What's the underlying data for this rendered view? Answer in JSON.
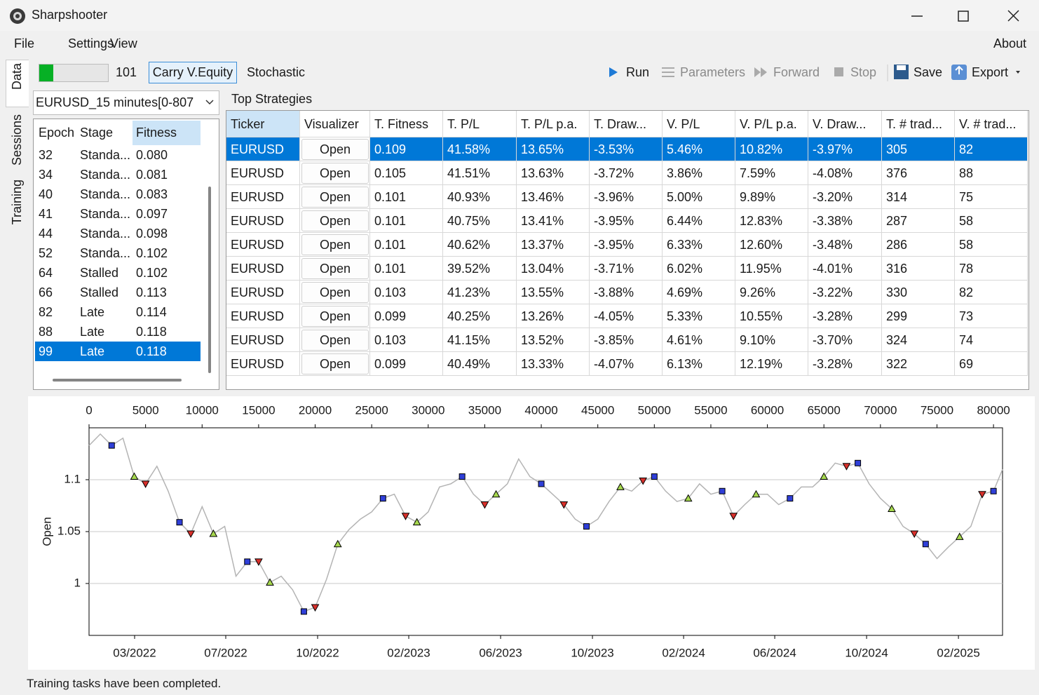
{
  "window": {
    "title": "Sharpshooter"
  },
  "menu": {
    "items": [
      "File",
      "Settings",
      "View"
    ],
    "about": "About"
  },
  "side_tabs": [
    "Data",
    "Sessions",
    "Training"
  ],
  "toolbar": {
    "progress_label": "101",
    "buttons": [
      "Carry V.Equity",
      "Stochastic"
    ],
    "actions": [
      "Run",
      "Parameters",
      "Forward",
      "Stop",
      "Save",
      "Export"
    ]
  },
  "dataset": "EURUSD_15 minutes[0-807",
  "epochs": {
    "columns": [
      "Epoch",
      "Stage",
      "Fitness"
    ],
    "rows": [
      [
        "32",
        "Standa...",
        "0.080"
      ],
      [
        "34",
        "Standa...",
        "0.081"
      ],
      [
        "40",
        "Standa...",
        "0.083"
      ],
      [
        "41",
        "Standa...",
        "0.097"
      ],
      [
        "44",
        "Standa...",
        "0.098"
      ],
      [
        "52",
        "Standa...",
        "0.102"
      ],
      [
        "64",
        "Stalled",
        "0.102"
      ],
      [
        "66",
        "Stalled",
        "0.113"
      ],
      [
        "82",
        "Late",
        "0.114"
      ],
      [
        "88",
        "Late",
        "0.118"
      ],
      [
        "99",
        "Late",
        "0.118"
      ]
    ],
    "selected_row": 10
  },
  "strategies": {
    "title": "Top Strategies",
    "columns": [
      "Ticker",
      "Visualizer",
      "T. Fitness",
      "T. P/L",
      "T. P/L p.a.",
      "T. Draw...",
      "V. P/L",
      "V. P/L p.a.",
      "V. Draw...",
      "T. # trad...",
      "V. # trad..."
    ],
    "rows": [
      [
        "EURUSD",
        "Open",
        "0.109",
        "41.58%",
        "13.65%",
        "-3.53%",
        "5.46%",
        "10.82%",
        "-3.97%",
        "305",
        "82"
      ],
      [
        "EURUSD",
        "Open",
        "0.105",
        "41.51%",
        "13.63%",
        "-3.72%",
        "3.86%",
        "7.59%",
        "-4.08%",
        "376",
        "88"
      ],
      [
        "EURUSD",
        "Open",
        "0.101",
        "40.93%",
        "13.46%",
        "-3.96%",
        "5.00%",
        "9.89%",
        "-3.20%",
        "314",
        "75"
      ],
      [
        "EURUSD",
        "Open",
        "0.101",
        "40.75%",
        "13.41%",
        "-3.95%",
        "6.44%",
        "12.83%",
        "-3.38%",
        "287",
        "58"
      ],
      [
        "EURUSD",
        "Open",
        "0.101",
        "40.62%",
        "13.37%",
        "-3.95%",
        "6.33%",
        "12.60%",
        "-3.48%",
        "286",
        "58"
      ],
      [
        "EURUSD",
        "Open",
        "0.101",
        "39.52%",
        "13.04%",
        "-3.71%",
        "6.02%",
        "11.95%",
        "-4.01%",
        "316",
        "78"
      ],
      [
        "EURUSD",
        "Open",
        "0.103",
        "41.23%",
        "13.55%",
        "-3.88%",
        "4.69%",
        "9.26%",
        "-3.22%",
        "330",
        "82"
      ],
      [
        "EURUSD",
        "Open",
        "0.099",
        "40.25%",
        "13.26%",
        "-4.05%",
        "5.33%",
        "10.55%",
        "-3.28%",
        "299",
        "73"
      ],
      [
        "EURUSD",
        "Open",
        "0.103",
        "41.15%",
        "13.52%",
        "-3.85%",
        "4.61%",
        "9.10%",
        "-3.70%",
        "324",
        "74"
      ],
      [
        "EURUSD",
        "Open",
        "0.099",
        "40.49%",
        "13.33%",
        "-4.07%",
        "6.13%",
        "12.19%",
        "-3.28%",
        "322",
        "69"
      ]
    ],
    "selected_row": 0
  },
  "chart_data": {
    "type": "line",
    "ylabel": "Open",
    "color": "#b4b4b4",
    "x": [
      0,
      1000,
      2000,
      3000,
      4000,
      5000,
      6000,
      7000,
      8000,
      9000,
      10000,
      11000,
      12000,
      13000,
      14000,
      15000,
      16000,
      17000,
      18000,
      19000,
      20000,
      21000,
      22000,
      23000,
      24000,
      25000,
      26000,
      27000,
      28000,
      29000,
      30000,
      31000,
      32000,
      33000,
      34000,
      35000,
      36000,
      37000,
      38000,
      39000,
      40000,
      41000,
      42000,
      43000,
      44000,
      45000,
      46000,
      47000,
      48000,
      49000,
      50000,
      51000,
      52000,
      53000,
      54000,
      55000,
      56000,
      57000,
      58000,
      59000,
      60000,
      61000,
      62000,
      63000,
      64000,
      65000,
      66000,
      67000,
      68000,
      69000,
      70000,
      71000,
      72000,
      73000,
      74000,
      75000,
      76000,
      77000,
      78000,
      79000,
      80000,
      80800
    ],
    "values": [
      1.133,
      1.144,
      1.133,
      1.14,
      1.103,
      1.096,
      1.113,
      1.089,
      1.059,
      1.048,
      1.074,
      1.048,
      1.055,
      1.007,
      1.021,
      1.021,
      1.001,
      1.007,
      0.994,
      0.973,
      0.977,
      1.004,
      1.038,
      1.052,
      1.062,
      1.069,
      1.082,
      1.086,
      1.065,
      1.059,
      1.069,
      1.093,
      1.096,
      1.103,
      1.086,
      1.076,
      1.086,
      1.096,
      1.12,
      1.103,
      1.096,
      1.086,
      1.076,
      1.062,
      1.055,
      1.062,
      1.079,
      1.093,
      1.089,
      1.099,
      1.103,
      1.089,
      1.079,
      1.082,
      1.096,
      1.086,
      1.089,
      1.065,
      1.076,
      1.086,
      1.086,
      1.076,
      1.082,
      1.093,
      1.093,
      1.103,
      1.116,
      1.113,
      1.116,
      1.096,
      1.082,
      1.072,
      1.055,
      1.048,
      1.038,
      1.024,
      1.035,
      1.045,
      1.055,
      1.086,
      1.089,
      1.11
    ],
    "markers": [
      {
        "shape": "square",
        "color": "#2f3fd8",
        "x": [
          2000,
          8000,
          14000,
          19000,
          26000,
          33000,
          40000,
          44000,
          50000,
          56000,
          62000,
          68000,
          74000,
          80000
        ],
        "values": [
          1.133,
          1.059,
          1.021,
          0.973,
          1.082,
          1.103,
          1.096,
          1.055,
          1.103,
          1.089,
          1.082,
          1.116,
          1.038,
          1.089
        ]
      },
      {
        "shape": "triangle-up",
        "color": "#a6d84e",
        "x": [
          4000,
          11000,
          16000,
          22000,
          29000,
          36000,
          47000,
          53000,
          59000,
          65000,
          71000,
          77000
        ],
        "values": [
          1.103,
          1.048,
          1.001,
          1.038,
          1.059,
          1.086,
          1.093,
          1.082,
          1.086,
          1.103,
          1.072,
          1.045
        ]
      },
      {
        "shape": "triangle-down",
        "color": "#d8302b",
        "x": [
          5000,
          9000,
          15000,
          20000,
          28000,
          35000,
          42000,
          49000,
          57000,
          67000,
          73000,
          79000
        ],
        "values": [
          1.096,
          1.048,
          1.021,
          0.977,
          1.065,
          1.076,
          1.076,
          1.099,
          1.065,
          1.113,
          1.048,
          1.086
        ]
      }
    ],
    "xlim": [
      0,
      80800
    ],
    "xticks": [
      0,
      5000,
      10000,
      15000,
      20000,
      25000,
      30000,
      35000,
      40000,
      45000,
      50000,
      55000,
      60000,
      65000,
      70000,
      75000,
      80000
    ],
    "x2ticks": [
      {
        "value": 4031,
        "label": "03/2022"
      },
      {
        "value": 12093,
        "label": "07/2022"
      },
      {
        "value": 20217,
        "label": "10/2022"
      },
      {
        "value": 28279,
        "label": "02/2023"
      },
      {
        "value": 36403,
        "label": "06/2023"
      },
      {
        "value": 44527,
        "label": "10/2023"
      },
      {
        "value": 52589,
        "label": "02/2024"
      },
      {
        "value": 60651,
        "label": "06/2024"
      },
      {
        "value": 68775,
        "label": "10/2024"
      },
      {
        "value": 76899,
        "label": "02/2025"
      }
    ],
    "ylim": [
      0.95,
      1.15
    ],
    "yticks": [
      1,
      1.05,
      1.1
    ],
    "grid": true
  },
  "status": "Training tasks have been completed."
}
